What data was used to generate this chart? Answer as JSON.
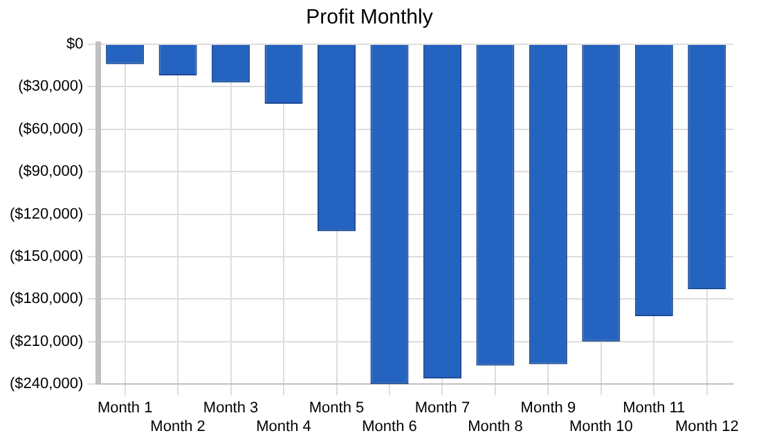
{
  "chart_data": {
    "type": "bar",
    "title": "Profit Monthly",
    "categories": [
      "Month 1",
      "Month 2",
      "Month 3",
      "Month 4",
      "Month 5",
      "Month 6",
      "Month 7",
      "Month 8",
      "Month 9",
      "Month 10",
      "Month 11",
      "Month 12"
    ],
    "values": [
      -14000,
      -22000,
      -27000,
      -42000,
      -132000,
      -240000,
      -236000,
      -227000,
      -226000,
      -210000,
      -192000,
      -173000
    ],
    "color": "#2563c0",
    "ylim": [
      -240000,
      0
    ],
    "yticks": [
      {
        "value": 0,
        "label": "$0"
      },
      {
        "value": -30000,
        "label": "($30,000)"
      },
      {
        "value": -60000,
        "label": "($60,000)"
      },
      {
        "value": -90000,
        "label": "($90,000)"
      },
      {
        "value": -120000,
        "label": "($120,000)"
      },
      {
        "value": -150000,
        "label": "($150,000)"
      },
      {
        "value": -180000,
        "label": "($180,000)"
      },
      {
        "value": -210000,
        "label": "($210,000)"
      },
      {
        "value": -240000,
        "label": "($240,000)"
      }
    ],
    "grid": true
  }
}
